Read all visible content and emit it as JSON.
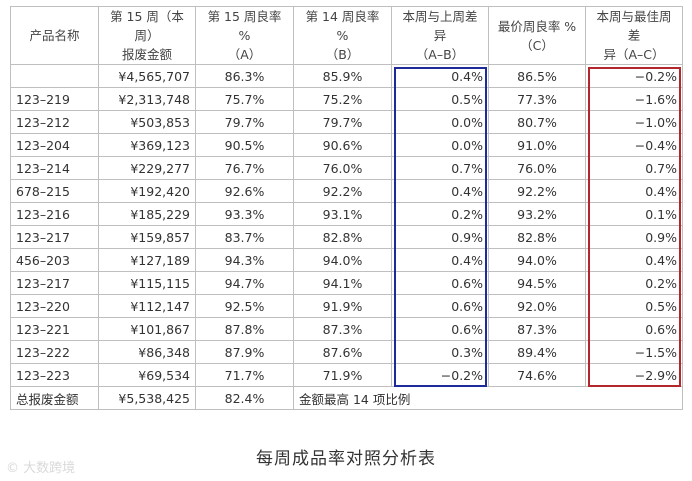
{
  "table": {
    "headers": [
      [
        "产品名称"
      ],
      [
        "第 15 周（本周）",
        "报废金额"
      ],
      [
        "第 15 周良率 %",
        "（A）"
      ],
      [
        "第 14 周良率 %",
        "（B）"
      ],
      [
        "本周与上周差异",
        "（A–B）"
      ],
      [
        "最价周良率 %",
        "（C）"
      ],
      [
        "本周与最佳周差",
        "异（A–C）"
      ]
    ],
    "rows": [
      [
        "",
        "¥4,565,707",
        "86.3%",
        "85.9%",
        "0.4%",
        "86.5%",
        "−0.2%"
      ],
      [
        "123–219",
        "¥2,313,748",
        "75.7%",
        "75.2%",
        "0.5%",
        "77.3%",
        "−1.6%"
      ],
      [
        "123–212",
        "¥503,853",
        "79.7%",
        "79.7%",
        "0.0%",
        "80.7%",
        "−1.0%"
      ],
      [
        "123–204",
        "¥369,123",
        "90.5%",
        "90.6%",
        "0.0%",
        "91.0%",
        "−0.4%"
      ],
      [
        "123–214",
        "¥229,277",
        "76.7%",
        "76.0%",
        "0.7%",
        "76.0%",
        "0.7%"
      ],
      [
        "678–215",
        "¥192,420",
        "92.6%",
        "92.2%",
        "0.4%",
        "92.2%",
        "0.4%"
      ],
      [
        "123–216",
        "¥185,229",
        "93.3%",
        "93.1%",
        "0.2%",
        "93.2%",
        "0.1%"
      ],
      [
        "123–217",
        "¥159,857",
        "83.7%",
        "82.8%",
        "0.9%",
        "82.8%",
        "0.9%"
      ],
      [
        "456–203",
        "¥127,189",
        "94.3%",
        "94.0%",
        "0.4%",
        "94.0%",
        "0.4%"
      ],
      [
        "123–217",
        "¥115,115",
        "94.7%",
        "94.1%",
        "0.6%",
        "94.5%",
        "0.2%"
      ],
      [
        "123–220",
        "¥112,147",
        "92.5%",
        "91.9%",
        "0.6%",
        "92.0%",
        "0.5%"
      ],
      [
        "123–221",
        "¥101,867",
        "87.8%",
        "87.3%",
        "0.6%",
        "87.3%",
        "0.6%"
      ],
      [
        "123–222",
        "¥86,348",
        "87.9%",
        "87.6%",
        "0.3%",
        "89.4%",
        "−1.5%"
      ],
      [
        "123–223",
        "¥69,534",
        "71.7%",
        "71.9%",
        "−0.2%",
        "74.6%",
        "−2.9%"
      ]
    ],
    "footer": {
      "label": "总报废金额",
      "total": "¥5,538,425",
      "yield": "82.4%",
      "note": "金额最高 14 项比例"
    }
  },
  "highlight_colors": {
    "diff_last_week": "#1f2a9a",
    "diff_best_week": "#b3262b"
  },
  "caption": "每周成品率对照分析表",
  "watermark": "© 大数跨境"
}
